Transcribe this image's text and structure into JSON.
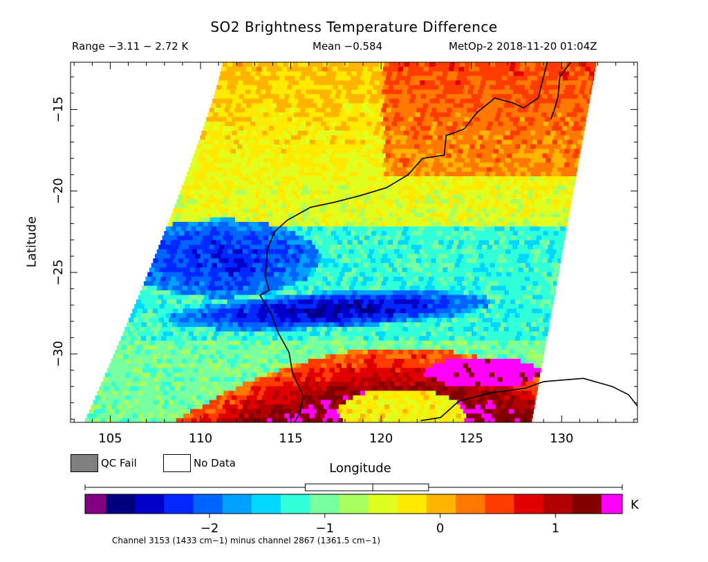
{
  "header": {
    "title": "SO2 Brightness Temperature Difference",
    "range_text": "Range −3.11 − 2.72 K",
    "mean_text": "Mean −0.584",
    "sat_text": "MetOp-2 2018-11-20 01:04Z"
  },
  "legend": {
    "qc_fail_label": "QC Fail",
    "no_data_label": "No Data",
    "qc_fail_color": "#7f7f7f",
    "no_data_color": "#ffffff"
  },
  "colorbar": {
    "unit": "K",
    "vmin": -2.9,
    "vmax": 1.4,
    "under_color": "#800080",
    "over_color": "#ff00ff",
    "colors": [
      "#00007f",
      "#0000c8",
      "#0028ff",
      "#0064ff",
      "#00a0ff",
      "#00d8ff",
      "#30ffd8",
      "#78ffa0",
      "#a8ff60",
      "#e0ff20",
      "#ffea00",
      "#ffb400",
      "#ff7800",
      "#ff3c00",
      "#e00000",
      "#b00000",
      "#800000"
    ],
    "ticks": [
      -2,
      -1,
      0,
      1
    ],
    "tick_labels": [
      "−2",
      "−1",
      "0",
      "1"
    ],
    "boxplot": {
      "whisker_low": -3.11,
      "q1": -1.17,
      "median": -0.584,
      "q3": -0.1,
      "whisker_high": 2.72
    }
  },
  "footnote": "Channel 3153 (1433 cm−1) minus channel 2867 (1361.5 cm−1)",
  "chart_data": {
    "type": "heatmap",
    "title": "SO2 Brightness Temperature Difference",
    "xlabel": "Longitude",
    "ylabel": "Latitude",
    "xlim": [
      102.8,
      134.2
    ],
    "ylim": [
      -34.2,
      -12.1
    ],
    "x_ticks": [
      105,
      110,
      115,
      120,
      125,
      130
    ],
    "y_ticks": [
      -15,
      -20,
      -25,
      -30
    ],
    "value_unit": "K",
    "value_range": [
      -3.11,
      2.72
    ],
    "mean": -0.584,
    "swath_corners": {
      "top_left": [
        111.2,
        -12.1
      ],
      "top_right": [
        131.9,
        -12.1
      ],
      "bottom_right": [
        128.3,
        -34.2
      ],
      "bottom_left": [
        103.5,
        -34.2
      ]
    },
    "features": [
      {
        "name": "cool band",
        "lon": [
          108,
          125
        ],
        "lat": [
          -28.5,
          -25.8
        ],
        "value": -2.2
      },
      {
        "name": "cool patch",
        "lon": [
          107,
          116
        ],
        "lat": [
          -26,
          -22
        ],
        "value": -1.8
      },
      {
        "name": "warm band",
        "lon": [
          104,
          128
        ],
        "lat": [
          -34,
          -29
        ],
        "value": 1.2
      },
      {
        "name": "saturated patch",
        "lon": [
          120,
          128
        ],
        "lat": [
          -32.5,
          -29.7
        ],
        "value": 2.0
      },
      {
        "name": "warm north-east",
        "lon": [
          117,
          130
        ],
        "lat": [
          -19,
          -12
        ],
        "value": 0.2
      }
    ],
    "coastlines": [
      [
        [
          129.2,
          -12.1
        ],
        [
          128.7,
          -14.3
        ],
        [
          127.9,
          -14.9
        ],
        [
          127.3,
          -14.6
        ],
        [
          126.3,
          -14.3
        ],
        [
          125.3,
          -15.2
        ],
        [
          124.6,
          -16.2
        ],
        [
          123.6,
          -16.6
        ],
        [
          123.5,
          -17.8
        ],
        [
          122.3,
          -18.0
        ],
        [
          121.5,
          -19.0
        ],
        [
          120.3,
          -19.8
        ],
        [
          118.8,
          -20.3
        ],
        [
          117.4,
          -20.7
        ],
        [
          116.1,
          -21.0
        ],
        [
          114.8,
          -21.8
        ],
        [
          114.1,
          -22.5
        ],
        [
          113.7,
          -23.6
        ],
        [
          113.6,
          -25.3
        ],
        [
          113.8,
          -26.1
        ],
        [
          113.3,
          -26.4
        ],
        [
          113.9,
          -27.5
        ],
        [
          114.3,
          -28.7
        ],
        [
          114.9,
          -29.9
        ],
        [
          115.1,
          -31.2
        ],
        [
          115.7,
          -32.6
        ],
        [
          115.5,
          -33.6
        ],
        [
          115.2,
          -34.2
        ]
      ],
      [
        [
          130.5,
          -12.1
        ],
        [
          129.9,
          -13.0
        ],
        [
          129.8,
          -14.2
        ],
        [
          129.6,
          -15.0
        ],
        [
          129.4,
          -15.6
        ]
      ],
      [
        [
          134.2,
          -33.2
        ],
        [
          133.7,
          -32.5
        ],
        [
          132.8,
          -32.0
        ],
        [
          131.2,
          -31.5
        ],
        [
          129.0,
          -31.7
        ],
        [
          128.0,
          -32.1
        ],
        [
          126.0,
          -32.4
        ],
        [
          124.3,
          -32.9
        ],
        [
          123.3,
          -33.9
        ],
        [
          122.2,
          -34.1
        ]
      ]
    ]
  }
}
